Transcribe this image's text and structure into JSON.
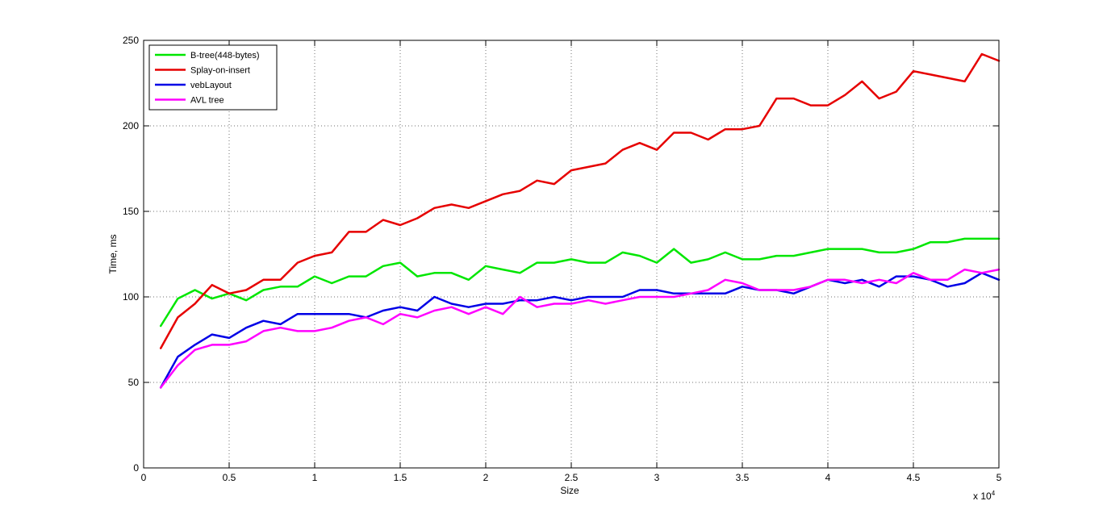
{
  "chart_data": {
    "type": "line",
    "title": "",
    "xlabel": "Size",
    "ylabel": "Time, ms",
    "x_multiplier_label": "x 10",
    "x_multiplier_exp": "4",
    "xlim": [
      0,
      5
    ],
    "ylim": [
      0,
      250
    ],
    "xticks": [
      0,
      0.5,
      1,
      1.5,
      2,
      2.5,
      3,
      3.5,
      4,
      4.5,
      5
    ],
    "xtick_labels": [
      "0",
      "0.5",
      "1",
      "1.5",
      "2",
      "2.5",
      "3",
      "3.5",
      "4",
      "4.5",
      "5"
    ],
    "yticks": [
      0,
      50,
      100,
      150,
      200,
      250
    ],
    "ytick_labels": [
      "0",
      "50",
      "100",
      "150",
      "200",
      "250"
    ],
    "grid": true,
    "legend_position": "top-left",
    "x": [
      0.1,
      0.2,
      0.3,
      0.4,
      0.5,
      0.6,
      0.7,
      0.8,
      0.9,
      1.0,
      1.1,
      1.2,
      1.3,
      1.4,
      1.5,
      1.6,
      1.7,
      1.8,
      1.9,
      2.0,
      2.1,
      2.2,
      2.3,
      2.4,
      2.5,
      2.6,
      2.7,
      2.8,
      2.9,
      3.0,
      3.1,
      3.2,
      3.3,
      3.4,
      3.5,
      3.6,
      3.7,
      3.8,
      3.9,
      4.0,
      4.1,
      4.2,
      4.3,
      4.4,
      4.5,
      4.6,
      4.7,
      4.8,
      4.9,
      5.0
    ],
    "series": [
      {
        "name": "B-tree(448-bytes)",
        "color": "#00e600",
        "values": [
          83,
          99,
          104,
          99,
          102,
          98,
          104,
          106,
          106,
          112,
          108,
          112,
          112,
          118,
          120,
          112,
          114,
          114,
          110,
          118,
          116,
          114,
          120,
          120,
          122,
          120,
          120,
          126,
          124,
          120,
          128,
          120,
          122,
          126,
          122,
          122,
          124,
          124,
          126,
          128,
          128,
          128,
          126,
          126,
          128,
          132,
          132,
          134,
          134,
          134
        ]
      },
      {
        "name": "Splay-on-insert",
        "color": "#e60000",
        "values": [
          70,
          88,
          96,
          107,
          102,
          104,
          110,
          110,
          120,
          124,
          126,
          138,
          138,
          145,
          142,
          146,
          152,
          154,
          152,
          156,
          160,
          162,
          168,
          166,
          174,
          176,
          178,
          186,
          190,
          186,
          196,
          196,
          192,
          198,
          198,
          200,
          216,
          216,
          212,
          212,
          218,
          226,
          216,
          220,
          232,
          230,
          228,
          226,
          242,
          238
        ]
      },
      {
        "name": "vebLayout",
        "color": "#0000e6",
        "values": [
          47,
          65,
          72,
          78,
          76,
          82,
          86,
          84,
          90,
          90,
          90,
          90,
          88,
          92,
          94,
          92,
          100,
          96,
          94,
          96,
          96,
          98,
          98,
          100,
          98,
          100,
          100,
          100,
          104,
          104,
          102,
          102,
          102,
          102,
          106,
          104,
          104,
          102,
          106,
          110,
          108,
          110,
          106,
          112,
          112,
          110,
          106,
          108,
          114,
          110
        ]
      },
      {
        "name": "AVL tree",
        "color": "#ff00ff",
        "values": [
          47,
          60,
          69,
          72,
          72,
          74,
          80,
          82,
          80,
          80,
          82,
          86,
          88,
          84,
          90,
          88,
          92,
          94,
          90,
          94,
          90,
          100,
          94,
          96,
          96,
          98,
          96,
          98,
          100,
          100,
          100,
          102,
          104,
          110,
          108,
          104,
          104,
          104,
          106,
          110,
          110,
          108,
          110,
          108,
          114,
          110,
          110,
          116,
          114,
          116
        ]
      }
    ]
  }
}
